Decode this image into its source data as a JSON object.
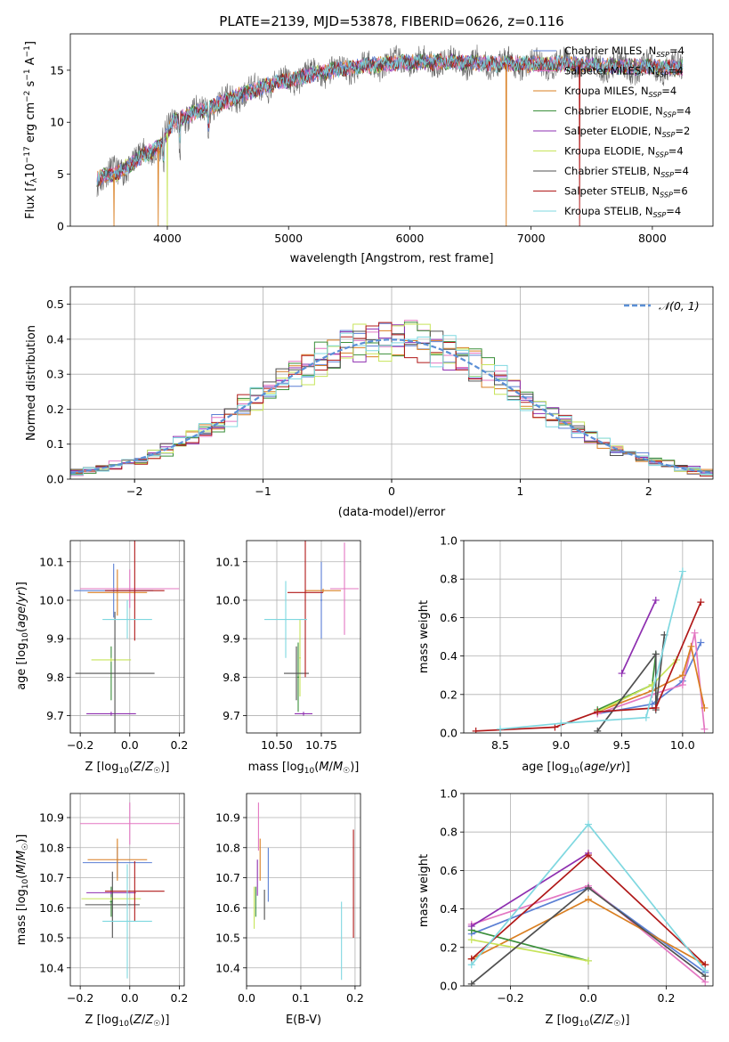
{
  "colors": {
    "Chabrier MILES": "#5b7fd4",
    "Salpeter MILES": "#e377c2",
    "Kroupa MILES": "#d97f22",
    "Chabrier ELODIE": "#3a8f3a",
    "Salpeter ELODIE": "#8e2fb0",
    "Kroupa ELODIE": "#c7e45a",
    "Chabrier STELIB": "#505050",
    "Salpeter STELIB": "#b01818",
    "Kroupa STELIB": "#7fd8e0",
    "gauss": "#5b8fd6"
  },
  "chart_data": [
    {
      "id": "spectrum",
      "type": "line",
      "title": "PLATE=2139, MJD=53878, FIBERID=0626, z=0.116",
      "xlabel": "wavelength [Angstrom, rest frame]",
      "ylabel": "Flux [f_λ 10^-17 erg cm^-2 s^-1 A^-1]",
      "ylabel_parts": {
        "a": "Flux [",
        "b": "f",
        "c": "λ",
        "d": "10",
        "e": "−17",
        "f": " erg cm",
        "g": "−2",
        "h": " s",
        "i": "−1",
        "j": " A",
        "k": "−1",
        "l": "]"
      },
      "xlim": [
        3200,
        8500
      ],
      "ylim": [
        0,
        18.5
      ],
      "xticks": [
        4000,
        5000,
        6000,
        7000,
        8000
      ],
      "yticks": [
        0,
        5,
        10,
        15
      ],
      "grid": false,
      "legend_position": "lower-right",
      "legend": [
        {
          "name": "Chabrier MILES",
          "nssp": "4"
        },
        {
          "name": "Salpeter MILES",
          "nssp": "4"
        },
        {
          "name": "Kroupa MILES",
          "nssp": "4"
        },
        {
          "name": "Chabrier ELODIE",
          "nssp": "4"
        },
        {
          "name": "Salpeter ELODIE",
          "nssp": "2"
        },
        {
          "name": "Kroupa ELODIE",
          "nssp": "4"
        },
        {
          "name": "Chabrier STELIB",
          "nssp": "4"
        },
        {
          "name": "Salpeter STELIB",
          "nssp": "6"
        },
        {
          "name": "Kroupa STELIB",
          "nssp": "4"
        }
      ],
      "nssp_label": "N",
      "nssp_sub": "SSP",
      "continuum": [
        [
          3420,
          4.6
        ],
        [
          3600,
          5.2
        ],
        [
          3800,
          6.8
        ],
        [
          3950,
          7.8
        ],
        [
          4050,
          10.1
        ],
        [
          4300,
          11.2
        ],
        [
          4600,
          12.6
        ],
        [
          4900,
          13.8
        ],
        [
          5200,
          14.6
        ],
        [
          5500,
          15.3
        ],
        [
          5800,
          15.6
        ],
        [
          6100,
          15.8
        ],
        [
          6400,
          15.8
        ],
        [
          6700,
          15.6
        ],
        [
          7000,
          15.6
        ],
        [
          7300,
          15.6
        ],
        [
          7600,
          15.4
        ],
        [
          7900,
          15.3
        ],
        [
          8250,
          15.2
        ]
      ]
    },
    {
      "id": "residuals",
      "type": "histogram",
      "xlabel": "(data-model)/error",
      "ylabel": "Normed distribution",
      "xlim": [
        -2.5,
        2.5
      ],
      "ylim": [
        0,
        0.55
      ],
      "xticks": [
        -2,
        -1,
        0,
        1,
        2
      ],
      "xtick_labels": [
        "−2",
        "−1",
        "0",
        "1",
        "2"
      ],
      "yticks": [
        0,
        0.1,
        0.2,
        0.3,
        0.4,
        0.5
      ],
      "ytick_labels": [
        "0.0",
        "0.1",
        "0.2",
        "0.3",
        "0.4",
        "0.5"
      ],
      "grid": true,
      "legend_position": "top-right",
      "gauss_label": "𝒩(0, 1)",
      "bin_width": 0.1
    },
    {
      "id": "age_vs_Z",
      "type": "errorbar",
      "xlabel": "Z [log10(Z/Z_sun)]",
      "ylabel": "age  [log10(age/yr)]",
      "xlim": [
        -0.24,
        0.22
      ],
      "ylim": [
        9.655,
        10.155
      ],
      "xticks": [
        -0.2,
        0.0,
        0.2
      ],
      "xtick_labels": [
        "−0.2",
        "0.0",
        "0.2"
      ],
      "yticks": [
        9.7,
        9.8,
        9.9,
        10.0,
        10.1
      ],
      "ytick_labels": [
        "9.7",
        "9.8",
        "9.9",
        "10.0",
        "10.1"
      ],
      "grid": true,
      "points": [
        {
          "model": "Chabrier MILES",
          "x": -0.065,
          "xerr": 0.16,
          "y": 10.025,
          "yerr": 0.07
        },
        {
          "model": "Salpeter MILES",
          "x": 0.0,
          "xerr": 0.2,
          "y": 10.03,
          "yerr": 0.05
        },
        {
          "model": "Kroupa MILES",
          "x": -0.05,
          "xerr": 0.12,
          "y": 10.02,
          "yerr": 0.06
        },
        {
          "model": "Chabrier ELODIE",
          "x": -0.075,
          "xerr": 0.005,
          "y": 9.81,
          "yerr": 0.07
        },
        {
          "model": "Salpeter ELODIE",
          "x": -0.075,
          "xerr": 0.1,
          "y": 9.705,
          "yerr": 0.005
        },
        {
          "model": "Kroupa ELODIE",
          "x": -0.075,
          "xerr": 0.08,
          "y": 9.845,
          "yerr": 0.005
        },
        {
          "model": "Chabrier STELIB",
          "x": -0.06,
          "xerr": 0.16,
          "y": 9.81,
          "yerr": 0.16
        },
        {
          "model": "Salpeter STELIB",
          "x": 0.02,
          "xerr": 0.12,
          "y": 10.025,
          "yerr": 0.13
        },
        {
          "model": "Kroupa STELIB",
          "x": -0.01,
          "xerr": 0.1,
          "y": 9.95,
          "yerr": 0.05
        }
      ]
    },
    {
      "id": "age_vs_mass",
      "type": "errorbar",
      "xlabel": "mass [log10(M/M_sun)]",
      "ylabel": "",
      "xlim": [
        10.33,
        10.97
      ],
      "ylim": [
        9.655,
        10.155
      ],
      "xticks": [
        10.5,
        10.75
      ],
      "xtick_labels": [
        "10.50",
        "10.75"
      ],
      "yticks": [
        9.7,
        9.8,
        9.9,
        10.0,
        10.1
      ],
      "ytick_labels": [
        "9.7",
        "9.8",
        "9.9",
        "10.0",
        "10.1"
      ],
      "grid": true,
      "points": [
        {
          "model": "Chabrier MILES",
          "x": 10.75,
          "xerr": 0.005,
          "y": 10.0,
          "yerr": 0.1
        },
        {
          "model": "Salpeter MILES",
          "x": 10.88,
          "xerr": 0.08,
          "y": 10.03,
          "yerr": 0.12
        },
        {
          "model": "Kroupa MILES",
          "x": 10.76,
          "xerr": 0.1,
          "y": 10.025,
          "yerr": 0.005
        },
        {
          "model": "Chabrier ELODIE",
          "x": 10.62,
          "xerr": 0.005,
          "y": 9.8,
          "yerr": 0.09
        },
        {
          "model": "Salpeter ELODIE",
          "x": 10.65,
          "xerr": 0.05,
          "y": 9.705,
          "yerr": 0.005
        },
        {
          "model": "Kroupa ELODIE",
          "x": 10.63,
          "xerr": 0.005,
          "y": 9.85,
          "yerr": 0.1
        },
        {
          "model": "Chabrier STELIB",
          "x": 10.61,
          "xerr": 0.07,
          "y": 9.81,
          "yerr": 0.07
        },
        {
          "model": "Salpeter STELIB",
          "x": 10.66,
          "xerr": 0.1,
          "y": 10.02,
          "yerr": 0.22
        },
        {
          "model": "Kroupa STELIB",
          "x": 10.55,
          "xerr": 0.12,
          "y": 9.95,
          "yerr": 0.1
        }
      ]
    },
    {
      "id": "weight_vs_age",
      "type": "line",
      "xlabel": "age  [log10(age/yr)]",
      "ylabel": "mass weight",
      "xlim": [
        8.2,
        10.25
      ],
      "ylim": [
        0,
        1.0
      ],
      "xticks": [
        8.5,
        9.0,
        9.5,
        10.0
      ],
      "xtick_labels": [
        "8.5",
        "9.0",
        "9.5",
        "10.0"
      ],
      "yticks": [
        0,
        0.2,
        0.4,
        0.6,
        0.8,
        1.0
      ],
      "ytick_labels": [
        "0.0",
        "0.2",
        "0.4",
        "0.6",
        "0.8",
        "1.0"
      ],
      "grid": true,
      "series": [
        {
          "model": "Chabrier MILES",
          "x": [
            9.3,
            9.75,
            10.0,
            10.15
          ],
          "y": [
            0.1,
            0.15,
            0.27,
            0.47
          ]
        },
        {
          "model": "Salpeter MILES",
          "x": [
            9.3,
            9.75,
            10.0,
            10.1,
            10.18
          ],
          "y": [
            0.1,
            0.2,
            0.25,
            0.52,
            0.02
          ]
        },
        {
          "model": "Kroupa MILES",
          "x": [
            9.3,
            9.75,
            10.0,
            10.07,
            10.18
          ],
          "y": [
            0.11,
            0.22,
            0.3,
            0.45,
            0.13
          ]
        },
        {
          "model": "Chabrier ELODIE",
          "x": [
            9.3,
            9.75,
            9.78
          ],
          "y": [
            0.12,
            0.25,
            0.41
          ]
        },
        {
          "model": "Salpeter ELODIE",
          "x": [
            9.5,
            9.78
          ],
          "y": [
            0.31,
            0.69
          ]
        },
        {
          "model": "Kroupa ELODIE",
          "x": [
            9.3,
            9.75,
            9.95
          ],
          "y": [
            0.11,
            0.25,
            0.38
          ]
        },
        {
          "model": "Chabrier STELIB",
          "x": [
            9.3,
            9.78,
            9.78,
            9.85
          ],
          "y": [
            0.01,
            0.41,
            0.12,
            0.51
          ]
        },
        {
          "model": "Salpeter STELIB",
          "x": [
            8.3,
            8.95,
            9.3,
            9.78,
            10.15
          ],
          "y": [
            0.01,
            0.03,
            0.11,
            0.13,
            0.68
          ]
        },
        {
          "model": "Kroupa STELIB",
          "x": [
            8.5,
            9.0,
            9.7,
            10.0
          ],
          "y": [
            0.02,
            0.05,
            0.08,
            0.84
          ]
        }
      ]
    },
    {
      "id": "mass_vs_Z",
      "type": "errorbar",
      "xlabel": "Z [log10(Z/Z_sun)]",
      "ylabel": "mass [log10(M/M_sun)]",
      "xlim": [
        -0.24,
        0.22
      ],
      "ylim": [
        10.34,
        10.98
      ],
      "xticks": [
        -0.2,
        0.0,
        0.2
      ],
      "xtick_labels": [
        "−0.2",
        "0.0",
        "0.2"
      ],
      "yticks": [
        10.4,
        10.5,
        10.6,
        10.7,
        10.8,
        10.9
      ],
      "ytick_labels": [
        "10.4",
        "10.5",
        "10.6",
        "10.7",
        "10.8",
        "10.9"
      ],
      "grid": true,
      "points": [
        {
          "model": "Chabrier MILES",
          "x": -0.05,
          "xerr": 0.14,
          "y": 10.75,
          "yerr": 0.05
        },
        {
          "model": "Salpeter MILES",
          "x": 0.0,
          "xerr": 0.2,
          "y": 10.88,
          "yerr": 0.07
        },
        {
          "model": "Kroupa MILES",
          "x": -0.05,
          "xerr": 0.12,
          "y": 10.76,
          "yerr": 0.07
        },
        {
          "model": "Chabrier ELODIE",
          "x": -0.075,
          "xerr": 0.005,
          "y": 10.62,
          "yerr": 0.05
        },
        {
          "model": "Salpeter ELODIE",
          "x": -0.075,
          "xerr": 0.1,
          "y": 10.65,
          "yerr": 0.005
        },
        {
          "model": "Kroupa ELODIE",
          "x": -0.075,
          "xerr": 0.12,
          "y": 10.63,
          "yerr": 0.005
        },
        {
          "model": "Chabrier STELIB",
          "x": -0.07,
          "xerr": 0.11,
          "y": 10.61,
          "yerr": 0.11
        },
        {
          "model": "Salpeter STELIB",
          "x": 0.02,
          "xerr": 0.12,
          "y": 10.655,
          "yerr": 0.1
        },
        {
          "model": "Kroupa STELIB",
          "x": -0.01,
          "xerr": 0.1,
          "y": 10.555,
          "yerr": 0.19
        }
      ]
    },
    {
      "id": "mass_vs_ebv",
      "type": "errorbar",
      "xlabel": "E(B-V)",
      "ylabel": "",
      "xlim": [
        0,
        0.21
      ],
      "ylim": [
        10.34,
        10.98
      ],
      "xticks": [
        0.0,
        0.1,
        0.2
      ],
      "xtick_labels": [
        "0.0",
        "0.1",
        "0.2"
      ],
      "yticks": [
        10.4,
        10.5,
        10.6,
        10.7,
        10.8,
        10.9
      ],
      "ytick_labels": [
        "10.4",
        "10.5",
        "10.6",
        "10.7",
        "10.8",
        "10.9"
      ],
      "grid": true,
      "points": [
        {
          "model": "Chabrier MILES",
          "x": 0.04,
          "xerr": 0.0,
          "y": 10.71,
          "yerr": 0.09
        },
        {
          "model": "Salpeter MILES",
          "x": 0.022,
          "xerr": 0.0,
          "y": 10.87,
          "yerr": 0.08
        },
        {
          "model": "Kroupa MILES",
          "x": 0.025,
          "xerr": 0.0,
          "y": 10.76,
          "yerr": 0.07
        },
        {
          "model": "Chabrier ELODIE",
          "x": 0.017,
          "xerr": 0.0,
          "y": 10.62,
          "yerr": 0.05
        },
        {
          "model": "Salpeter ELODIE",
          "x": 0.02,
          "xerr": 0.0,
          "y": 10.7,
          "yerr": 0.06
        },
        {
          "model": "Kroupa ELODIE",
          "x": 0.014,
          "xerr": 0.0,
          "y": 10.6,
          "yerr": 0.07
        },
        {
          "model": "Chabrier STELIB",
          "x": 0.033,
          "xerr": 0.0,
          "y": 10.61,
          "yerr": 0.05
        },
        {
          "model": "Salpeter STELIB",
          "x": 0.197,
          "xerr": 0.0,
          "y": 10.68,
          "yerr": 0.18
        },
        {
          "model": "Kroupa STELIB",
          "x": 0.175,
          "xerr": 0.0,
          "y": 10.49,
          "yerr": 0.13
        }
      ]
    },
    {
      "id": "weight_vs_Z",
      "type": "line",
      "xlabel": "Z [log10(Z/Z_sun)]",
      "ylabel": "mass weight",
      "xlim": [
        -0.32,
        0.32
      ],
      "ylim": [
        0,
        1.0
      ],
      "xticks": [
        -0.2,
        0.0,
        0.2
      ],
      "xtick_labels": [
        "−0.2",
        "0.0",
        "0.2"
      ],
      "yticks": [
        0,
        0.2,
        0.4,
        0.6,
        0.8,
        1.0
      ],
      "ytick_labels": [
        "0.0",
        "0.2",
        "0.4",
        "0.6",
        "0.8",
        "1.0"
      ],
      "grid": true,
      "series": [
        {
          "model": "Chabrier MILES",
          "x": [
            -0.3,
            0.0,
            0.3
          ],
          "y": [
            0.27,
            0.51,
            0.07
          ]
        },
        {
          "model": "Salpeter MILES",
          "x": [
            -0.3,
            0.0,
            0.3
          ],
          "y": [
            0.32,
            0.52,
            0.02
          ]
        },
        {
          "model": "Kroupa MILES",
          "x": [
            -0.3,
            0.0,
            0.3
          ],
          "y": [
            0.14,
            0.45,
            0.11
          ]
        },
        {
          "model": "Chabrier ELODIE",
          "x": [
            -0.3,
            0.0
          ],
          "y": [
            0.29,
            0.13
          ]
        },
        {
          "model": "Salpeter ELODIE",
          "x": [
            -0.3,
            0.0
          ],
          "y": [
            0.31,
            0.69
          ]
        },
        {
          "model": "Kroupa ELODIE",
          "x": [
            -0.3,
            0.0
          ],
          "y": [
            0.24,
            0.13
          ]
        },
        {
          "model": "Chabrier STELIB",
          "x": [
            -0.3,
            0.0,
            0.3
          ],
          "y": [
            0.01,
            0.51,
            0.05
          ]
        },
        {
          "model": "Salpeter STELIB",
          "x": [
            -0.3,
            0.0,
            0.3
          ],
          "y": [
            0.14,
            0.68,
            0.11
          ]
        },
        {
          "model": "Kroupa STELIB",
          "x": [
            -0.3,
            0.0,
            0.3
          ],
          "y": [
            0.11,
            0.84,
            0.08
          ]
        }
      ]
    }
  ]
}
